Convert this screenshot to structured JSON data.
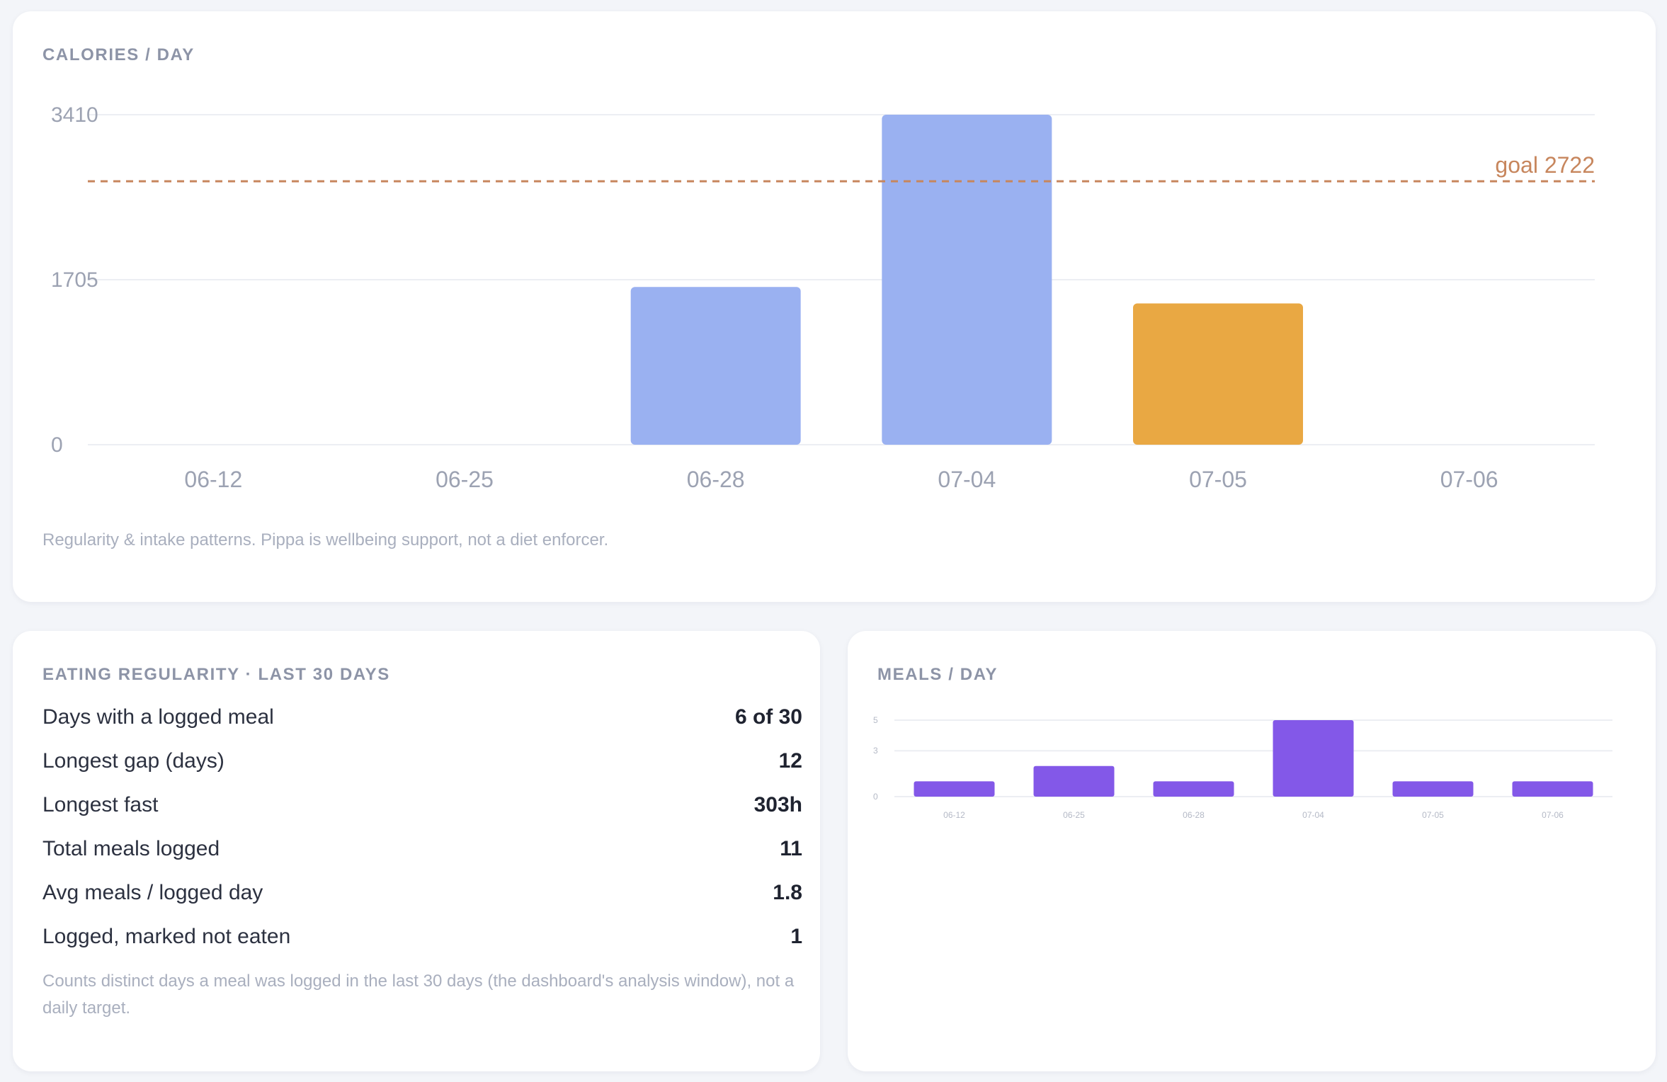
{
  "calories_card": {
    "title": "CALORIES / DAY",
    "caption": "Regularity & intake patterns. Pippa is wellbeing support, not a diet enforcer.",
    "goal_label": "goal 2722",
    "colors": {
      "bar": "#9ab1f1",
      "highlight": "#e9a843",
      "goal_line": "#c7865d",
      "grid": "#eceef3",
      "tick": "#9ca2b2"
    }
  },
  "regularity_card": {
    "title": "EATING REGULARITY · LAST 30 DAYS",
    "rows": [
      {
        "label": "Days with a logged meal",
        "value": "6 of 30"
      },
      {
        "label": "Longest gap (days)",
        "value": "12"
      },
      {
        "label": "Longest fast",
        "value": "303h"
      },
      {
        "label": "Total meals logged",
        "value": "11"
      },
      {
        "label": "Avg meals / logged day",
        "value": "1.8"
      },
      {
        "label": "Logged, marked not eaten",
        "value": "1"
      }
    ],
    "note": "Counts distinct days a meal was logged in the last 30 days (the dashboard's analysis window), not a daily target."
  },
  "meals_card": {
    "title": "MEALS / DAY",
    "colors": {
      "bar": "#8358e8",
      "grid": "#eceef3",
      "tick": "#b4b9c6"
    }
  },
  "chart_data": [
    {
      "type": "bar",
      "title": "CALORIES / DAY",
      "categories": [
        "06-12",
        "06-25",
        "06-28",
        "07-04",
        "07-05",
        "07-06"
      ],
      "values": [
        0,
        0,
        1630,
        3410,
        1460,
        0
      ],
      "highlight_index": 4,
      "yticks": [
        0,
        1705,
        3410
      ],
      "ylim": [
        0,
        3410
      ],
      "goal": 2722,
      "grid": true
    },
    {
      "type": "bar",
      "title": "MEALS / DAY",
      "categories": [
        "06-12",
        "06-25",
        "06-28",
        "07-04",
        "07-05",
        "07-06"
      ],
      "values": [
        1,
        2,
        1,
        5,
        1,
        1
      ],
      "yticks": [
        0,
        3,
        5
      ],
      "ylim": [
        0,
        5
      ],
      "grid": true
    }
  ]
}
